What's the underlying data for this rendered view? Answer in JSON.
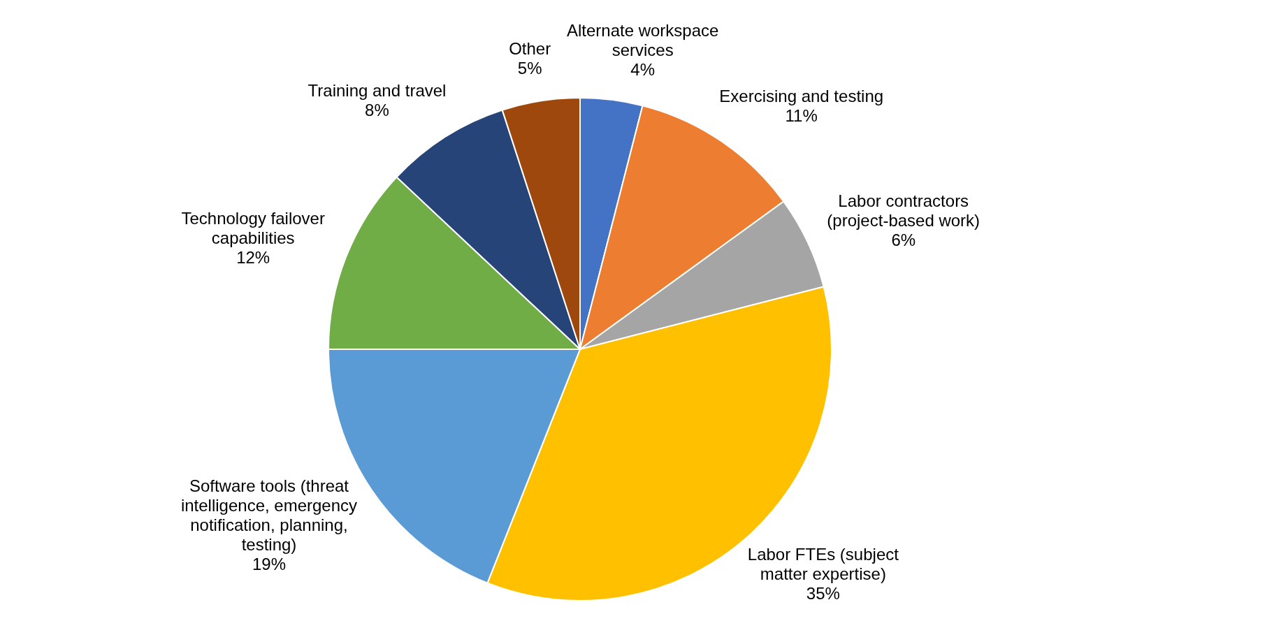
{
  "chart_data": {
    "type": "pie",
    "categories": [
      "Alternate workspace services",
      "Exercising and testing",
      "Labor contractors (project-based work)",
      "Labor FTEs (subject matter expertise)",
      "Software tools (threat intelligence, emergency notification, planning, testing)",
      "Technology failover capabilities",
      "Training and travel",
      "Other"
    ],
    "values": [
      4,
      11,
      6,
      35,
      19,
      12,
      8,
      5
    ],
    "value_labels": [
      "4%",
      "11%",
      "6%",
      "35%",
      "19%",
      "12%",
      "8%",
      "5%"
    ],
    "colors": [
      "#4472c4",
      "#ed7d31",
      "#a5a5a5",
      "#ffc000",
      "#5b9bd5",
      "#70ad47",
      "#264478",
      "#9e480e"
    ]
  }
}
